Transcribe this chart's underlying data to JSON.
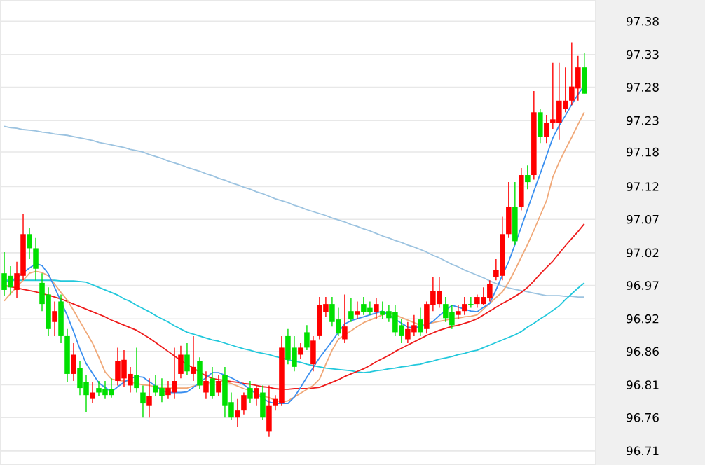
{
  "chart_data": {
    "type": "candlestick",
    "categories": [
      null,
      null,
      null,
      null,
      null,
      null,
      null,
      null,
      null,
      null,
      null,
      null,
      null,
      null,
      null,
      null,
      null,
      null,
      null,
      null,
      null,
      null,
      null,
      null,
      null,
      null,
      null,
      null,
      null,
      null,
      null,
      null,
      null,
      null,
      null,
      null,
      null,
      null,
      null,
      null,
      null,
      null,
      null,
      null,
      null,
      null,
      null,
      null,
      null,
      null,
      null,
      null,
      null,
      null,
      null,
      null,
      null,
      null,
      null,
      null,
      null,
      null,
      null,
      null,
      null,
      null,
      null,
      null,
      null,
      null,
      null,
      null,
      null,
      null,
      null,
      null,
      null,
      null,
      null,
      null,
      null,
      null,
      null,
      null,
      null,
      null,
      null,
      null,
      null,
      null,
      null,
      null,
      null
    ],
    "ohlc": [
      [
        96.987,
        97.02,
        96.952,
        96.961
      ],
      [
        96.983,
        96.998,
        96.954,
        96.965
      ],
      [
        96.961,
        97.005,
        96.948,
        96.987
      ],
      [
        96.983,
        97.079,
        96.976,
        97.048
      ],
      [
        97.048,
        97.057,
        97.009,
        97.026
      ],
      [
        97.026,
        97.042,
        96.976,
        96.994
      ],
      [
        96.972,
        96.987,
        96.928,
        96.939
      ],
      [
        96.954,
        96.965,
        96.889,
        96.9
      ],
      [
        96.911,
        96.943,
        96.889,
        96.928
      ],
      [
        96.943,
        96.954,
        96.878,
        96.889
      ],
      [
        96.889,
        96.9,
        96.817,
        96.83
      ],
      [
        96.83,
        96.878,
        96.819,
        96.86
      ],
      [
        96.839,
        96.85,
        96.797,
        96.808
      ],
      [
        96.817,
        96.828,
        96.771,
        96.797
      ],
      [
        96.791,
        96.817,
        96.784,
        96.801
      ],
      [
        96.808,
        96.819,
        96.795,
        96.801
      ],
      [
        96.806,
        96.819,
        96.791,
        96.797
      ],
      [
        96.806,
        96.823,
        96.793,
        96.797
      ],
      [
        96.819,
        96.871,
        96.812,
        96.85
      ],
      [
        96.823,
        96.867,
        96.81,
        96.852
      ],
      [
        96.812,
        96.841,
        96.801,
        96.83
      ],
      [
        96.828,
        96.871,
        96.801,
        96.808
      ],
      [
        96.801,
        96.812,
        96.762,
        96.784
      ],
      [
        96.78,
        96.823,
        96.762,
        96.795
      ],
      [
        96.812,
        96.828,
        96.795,
        96.801
      ],
      [
        96.808,
        96.823,
        96.786,
        96.795
      ],
      [
        96.797,
        96.819,
        96.791,
        96.808
      ],
      [
        96.801,
        96.871,
        96.791,
        96.819
      ],
      [
        96.83,
        96.874,
        96.823,
        96.86
      ],
      [
        96.86,
        96.878,
        96.828,
        96.834
      ],
      [
        96.83,
        96.889,
        96.819,
        96.841
      ],
      [
        96.85,
        96.856,
        96.806,
        96.812
      ],
      [
        96.801,
        96.834,
        96.791,
        96.819
      ],
      [
        96.823,
        96.841,
        96.791,
        96.795
      ],
      [
        96.801,
        96.828,
        96.795,
        96.819
      ],
      [
        96.828,
        96.841,
        96.762,
        96.78
      ],
      [
        96.786,
        96.801,
        96.758,
        96.762
      ],
      [
        96.762,
        96.791,
        96.747,
        96.773
      ],
      [
        96.773,
        96.801,
        96.767,
        96.797
      ],
      [
        96.808,
        96.819,
        96.784,
        96.791
      ],
      [
        96.791,
        96.812,
        96.78,
        96.808
      ],
      [
        96.801,
        96.812,
        96.758,
        96.762
      ],
      [
        96.74,
        96.812,
        96.732,
        96.78
      ],
      [
        96.78,
        96.797,
        96.773,
        96.791
      ],
      [
        96.784,
        96.889,
        96.78,
        96.871
      ],
      [
        96.889,
        96.9,
        96.845,
        96.852
      ],
      [
        96.871,
        96.889,
        96.834,
        96.841
      ],
      [
        96.86,
        96.878,
        96.854,
        96.871
      ],
      [
        96.895,
        96.906,
        96.867,
        96.871
      ],
      [
        96.845,
        96.889,
        96.834,
        96.882
      ],
      [
        96.889,
        96.95,
        96.884,
        96.937
      ],
      [
        96.926,
        96.95,
        96.919,
        96.939
      ],
      [
        96.939,
        96.95,
        96.904,
        96.911
      ],
      [
        96.915,
        96.933,
        96.889,
        96.893
      ],
      [
        96.884,
        96.954,
        96.878,
        96.904
      ],
      [
        96.928,
        96.948,
        96.911,
        96.915
      ],
      [
        96.922,
        96.943,
        96.915,
        96.928
      ],
      [
        96.939,
        96.95,
        96.922,
        96.926
      ],
      [
        96.933,
        96.943,
        96.922,
        96.926
      ],
      [
        96.926,
        96.948,
        96.915,
        96.939
      ],
      [
        96.928,
        96.943,
        96.915,
        96.922
      ],
      [
        96.928,
        96.937,
        96.911,
        96.917
      ],
      [
        96.926,
        96.937,
        96.889,
        96.895
      ],
      [
        96.906,
        96.915,
        96.878,
        96.889
      ],
      [
        96.884,
        96.911,
        96.878,
        96.9
      ],
      [
        96.895,
        96.922,
        96.889,
        96.906
      ],
      [
        96.915,
        96.933,
        96.889,
        96.895
      ],
      [
        96.9,
        96.943,
        96.893,
        96.939
      ],
      [
        96.937,
        96.981,
        96.928,
        96.959
      ],
      [
        96.939,
        96.981,
        96.933,
        96.959
      ],
      [
        96.939,
        96.95,
        96.911,
        96.917
      ],
      [
        96.926,
        96.937,
        96.9,
        96.906
      ],
      [
        96.922,
        96.937,
        96.915,
        96.928
      ],
      [
        96.928,
        96.95,
        96.922,
        96.939
      ],
      [
        96.939,
        96.95,
        96.933,
        96.937
      ],
      [
        96.939,
        96.954,
        96.933,
        96.95
      ],
      [
        96.939,
        96.965,
        96.937,
        96.95
      ],
      [
        96.948,
        96.976,
        96.943,
        96.97
      ],
      [
        96.981,
        97.009,
        96.976,
        96.992
      ],
      [
        96.983,
        97.075,
        96.976,
        97.048
      ],
      [
        97.048,
        97.129,
        97.042,
        97.09
      ],
      [
        97.09,
        97.129,
        97.031,
        97.037
      ],
      [
        97.09,
        97.151,
        97.085,
        97.14
      ],
      [
        97.14,
        97.155,
        97.118,
        97.129
      ],
      [
        97.14,
        97.271,
        97.133,
        97.238
      ],
      [
        97.238,
        97.243,
        97.19,
        97.199
      ],
      [
        97.199,
        97.234,
        97.19,
        97.221
      ],
      [
        97.221,
        97.315,
        97.212,
        97.227
      ],
      [
        97.221,
        97.315,
        97.195,
        97.256
      ],
      [
        97.243,
        97.308,
        97.238,
        97.256
      ],
      [
        97.256,
        97.347,
        97.249,
        97.278
      ],
      [
        97.275,
        97.326,
        97.256,
        97.308
      ],
      [
        97.308,
        97.33,
        97.267,
        97.267
      ]
    ],
    "colors": [
      "#00e000",
      "#00e000",
      "#ff0000",
      "#ff0000",
      "#00e000",
      "#00e000",
      "#00e000",
      "#00e000",
      "#ff0000",
      "#00e000",
      "#00e000",
      "#ff0000",
      "#00e000",
      "#00e000",
      "#ff0000",
      "#00e000",
      "#00e000",
      "#00e000",
      "#ff0000",
      "#ff0000",
      "#ff0000",
      "#00e000",
      "#00e000",
      "#ff0000",
      "#00e000",
      "#00e000",
      "#ff0000",
      "#ff0000",
      "#ff0000",
      "#00e000",
      "#ff0000",
      "#00e000",
      "#ff0000",
      "#00e000",
      "#ff0000",
      "#00e000",
      "#00e000",
      "#ff0000",
      "#ff0000",
      "#00e000",
      "#ff0000",
      "#00e000",
      "#ff0000",
      "#ff0000",
      "#ff0000",
      "#00e000",
      "#00e000",
      "#ff0000",
      "#00e000",
      "#ff0000",
      "#ff0000",
      "#ff0000",
      "#00e000",
      "#00e000",
      "#ff0000",
      "#00e000",
      "#ff0000",
      "#00e000",
      "#00e000",
      "#ff0000",
      "#00e000",
      "#00e000",
      "#00e000",
      "#00e000",
      "#ff0000",
      "#ff0000",
      "#00e000",
      "#ff0000",
      "#ff0000",
      "#ff0000",
      "#00e000",
      "#00e000",
      "#ff0000",
      "#ff0000",
      "#00e000",
      "#ff0000",
      "#ff0000",
      "#ff0000",
      "#ff0000",
      "#ff0000",
      "#ff0000",
      "#00e000",
      "#ff0000",
      "#00e000",
      "#ff0000",
      "#00e000",
      "#ff0000",
      "#ff0000",
      "#ff0000",
      "#ff0000",
      "#ff0000",
      "#ff0000",
      "#00e000"
    ],
    "series": [
      {
        "type": "line",
        "color": "#9cc3e0",
        "values": [
          97.216,
          97.214,
          97.213,
          97.211,
          97.21,
          97.209,
          97.207,
          97.206,
          97.204,
          97.203,
          97.202,
          97.2,
          97.198,
          97.196,
          97.194,
          97.191,
          97.189,
          97.187,
          97.185,
          97.183,
          97.18,
          97.178,
          97.176,
          97.172,
          97.169,
          97.166,
          97.162,
          97.159,
          97.156,
          97.152,
          97.149,
          97.146,
          97.142,
          97.139,
          97.135,
          97.132,
          97.128,
          97.125,
          97.121,
          97.118,
          97.114,
          97.111,
          97.107,
          97.103,
          97.1,
          97.097,
          97.093,
          97.09,
          97.086,
          97.083,
          97.08,
          97.077,
          97.073,
          97.07,
          97.067,
          97.063,
          97.06,
          97.056,
          97.053,
          97.049,
          97.045,
          97.042,
          97.038,
          97.035,
          97.031,
          97.028,
          97.024,
          97.02,
          97.015,
          97.011,
          97.006,
          97.001,
          96.997,
          96.992,
          96.988,
          96.984,
          96.98,
          96.975,
          96.971,
          96.967,
          96.964,
          96.962,
          96.96,
          96.958,
          96.956,
          96.954,
          96.952,
          96.952,
          96.952,
          96.951,
          96.951,
          96.95,
          96.95
        ]
      },
      {
        "type": "line",
        "color": "#22c8dc",
        "values": [
          96.976,
          96.976,
          96.976,
          96.976,
          96.976,
          96.976,
          96.976,
          96.976,
          96.976,
          96.975,
          96.975,
          96.975,
          96.974,
          96.973,
          96.969,
          96.965,
          96.961,
          96.957,
          96.953,
          96.947,
          96.943,
          96.937,
          96.932,
          96.927,
          96.921,
          96.916,
          96.911,
          96.905,
          96.9,
          96.895,
          96.892,
          96.889,
          96.886,
          96.883,
          96.881,
          96.878,
          96.875,
          96.872,
          96.869,
          96.867,
          96.864,
          96.862,
          96.86,
          96.857,
          96.855,
          96.852,
          96.85,
          96.848,
          96.845,
          96.843,
          96.841,
          96.839,
          96.838,
          96.837,
          96.836,
          96.835,
          96.833,
          96.832,
          96.833,
          96.835,
          96.836,
          96.838,
          96.839,
          96.841,
          96.842,
          96.844,
          96.845,
          96.848,
          96.85,
          96.853,
          96.855,
          96.857,
          96.86,
          96.862,
          96.865,
          96.867,
          96.871,
          96.875,
          96.879,
          96.883,
          96.887,
          96.891,
          96.896,
          96.903,
          96.909,
          96.916,
          96.922,
          96.929,
          96.936,
          96.946,
          96.955,
          96.964,
          96.972
        ]
      },
      {
        "type": "line",
        "color": "#ee1c1c",
        "values": [
          96.968,
          96.966,
          96.964,
          96.962,
          96.96,
          96.958,
          96.955,
          96.953,
          96.95,
          96.947,
          96.943,
          96.939,
          96.935,
          96.931,
          96.927,
          96.923,
          96.919,
          96.914,
          96.91,
          96.906,
          96.902,
          96.898,
          96.892,
          96.886,
          96.879,
          96.872,
          96.865,
          96.858,
          96.851,
          96.845,
          96.839,
          96.833,
          96.827,
          96.823,
          96.821,
          96.82,
          96.818,
          96.817,
          96.815,
          96.814,
          96.812,
          96.81,
          96.809,
          96.807,
          96.806,
          96.806,
          96.807,
          96.807,
          96.807,
          96.808,
          96.809,
          96.813,
          96.817,
          96.821,
          96.826,
          96.83,
          96.834,
          96.838,
          96.843,
          96.849,
          96.854,
          96.859,
          96.865,
          96.87,
          96.875,
          96.88,
          96.885,
          96.89,
          96.894,
          96.898,
          96.901,
          96.904,
          96.906,
          96.909,
          96.912,
          96.916,
          96.922,
          96.928,
          96.934,
          96.94,
          96.945,
          96.951,
          96.957,
          96.965,
          96.975,
          96.986,
          96.996,
          97.006,
          97.018,
          97.03,
          97.041,
          97.052,
          97.064
        ]
      },
      {
        "type": "line",
        "color": "#f0a878",
        "values": [
          96.944,
          96.955,
          96.966,
          96.976,
          96.987,
          96.99,
          96.988,
          96.983,
          96.97,
          96.957,
          96.945,
          96.929,
          96.912,
          96.895,
          96.878,
          96.856,
          96.833,
          96.822,
          96.82,
          96.819,
          96.817,
          96.815,
          96.813,
          96.812,
          96.81,
          96.808,
          96.808,
          96.808,
          96.808,
          96.808,
          96.811,
          96.813,
          96.815,
          96.817,
          96.818,
          96.818,
          96.815,
          96.811,
          96.807,
          96.804,
          96.8,
          96.796,
          96.793,
          96.789,
          96.786,
          96.788,
          96.794,
          96.8,
          96.806,
          96.812,
          96.822,
          96.845,
          96.867,
          96.884,
          96.891,
          96.897,
          96.904,
          96.91,
          96.914,
          96.918,
          96.922,
          96.926,
          96.922,
          96.918,
          96.914,
          96.91,
          96.906,
          96.908,
          96.91,
          96.912,
          96.914,
          96.916,
          96.917,
          96.919,
          96.92,
          96.922,
          96.931,
          96.94,
          96.949,
          96.958,
          96.973,
          96.992,
          97.012,
          97.032,
          97.054,
          97.077,
          97.1,
          97.137,
          97.16,
          97.18,
          97.199,
          97.219,
          97.238
        ]
      },
      {
        "type": "line",
        "color": "#3a8ff0",
        "values": [
          96.973,
          96.975,
          96.98,
          96.988,
          96.995,
          97.002,
          96.999,
          96.986,
          96.965,
          96.943,
          96.921,
          96.896,
          96.869,
          96.846,
          96.831,
          96.816,
          96.809,
          96.802,
          96.81,
          96.817,
          96.823,
          96.826,
          96.825,
          96.818,
          96.811,
          96.804,
          96.801,
          96.801,
          96.801,
          96.802,
          96.809,
          96.817,
          96.824,
          96.832,
          96.832,
          96.828,
          96.824,
          96.819,
          96.813,
          96.806,
          96.799,
          96.792,
          96.786,
          96.784,
          96.784,
          96.784,
          96.794,
          96.809,
          96.825,
          96.84,
          96.855,
          96.868,
          96.881,
          96.895,
          96.908,
          96.913,
          96.916,
          96.919,
          96.922,
          96.925,
          96.928,
          96.922,
          96.915,
          96.909,
          96.903,
          96.902,
          96.904,
          96.906,
          96.912,
          96.921,
          96.929,
          96.937,
          96.934,
          96.931,
          96.928,
          96.927,
          96.934,
          96.94,
          96.961,
          96.984,
          97.005,
          97.032,
          97.059,
          97.087,
          97.115,
          97.142,
          97.17,
          97.198,
          97.217,
          97.233,
          97.25,
          97.266,
          97.28
        ]
      }
    ],
    "ylim": [
      96.688,
      97.413
    ],
    "yticks": [
      {
        "value": 96.71,
        "label": "96.71"
      },
      {
        "value": 96.762,
        "label": "96.76"
      },
      {
        "value": 96.813,
        "label": "96.81"
      },
      {
        "value": 96.865,
        "label": "96.86"
      },
      {
        "value": 96.916,
        "label": "96.92"
      },
      {
        "value": 96.968,
        "label": "96.97"
      },
      {
        "value": 97.019,
        "label": "97.02"
      },
      {
        "value": 97.071,
        "label": "97.07"
      },
      {
        "value": 97.122,
        "label": "97.12"
      },
      {
        "value": 97.176,
        "label": "97.18"
      },
      {
        "value": 97.225,
        "label": "97.23"
      },
      {
        "value": 97.277,
        "label": "97.28"
      },
      {
        "value": 97.328,
        "label": "97.33"
      },
      {
        "value": 97.38,
        "label": "97.38"
      }
    ],
    "grid": "y",
    "tick_labels": "y"
  }
}
